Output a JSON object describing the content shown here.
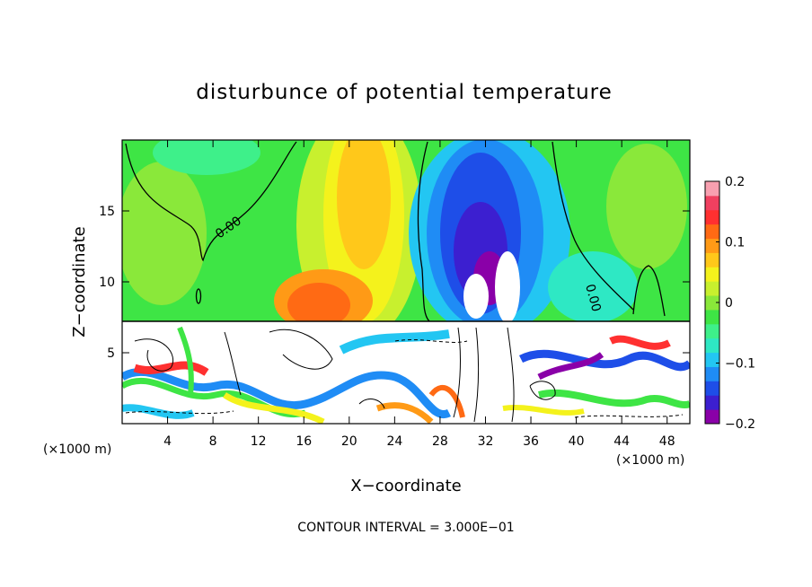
{
  "chart_data": {
    "type": "heatmap",
    "title": "disturbunce of potential temperature",
    "xlabel": "X−coordinate",
    "ylabel": "Z−coordinate",
    "x_unit_left": "(×1000 m)",
    "x_unit_right": "(×1000 m)",
    "xlim": [
      0,
      50
    ],
    "ylim": [
      0,
      20
    ],
    "x_ticks": [
      4,
      8,
      12,
      16,
      20,
      24,
      28,
      32,
      36,
      40,
      44,
      48
    ],
    "y_ticks": [
      5,
      10,
      15
    ],
    "colorbar": {
      "min": -0.2,
      "max": 0.2,
      "tick_values": [
        0.2,
        0.1,
        0,
        -0.1,
        -0.2
      ],
      "tick_labels": [
        "0.2",
        "0.1",
        "0",
        "−0.1",
        "−0.2"
      ],
      "colors": [
        "#8a00a8",
        "#3c1fd0",
        "#1e4ee8",
        "#1f8cf5",
        "#23c6f2",
        "#2ee8c4",
        "#3ef08a",
        "#3ee545",
        "#8ae83a",
        "#c8f02e",
        "#f4f21c",
        "#ffc81a",
        "#ff9a16",
        "#ff6a14",
        "#ff3030",
        "#f04060",
        "#f8a0b0"
      ]
    },
    "contour_label": "0.00",
    "contour_interval_text": "CONTOUR INTERVAL = 3.000E−01"
  }
}
